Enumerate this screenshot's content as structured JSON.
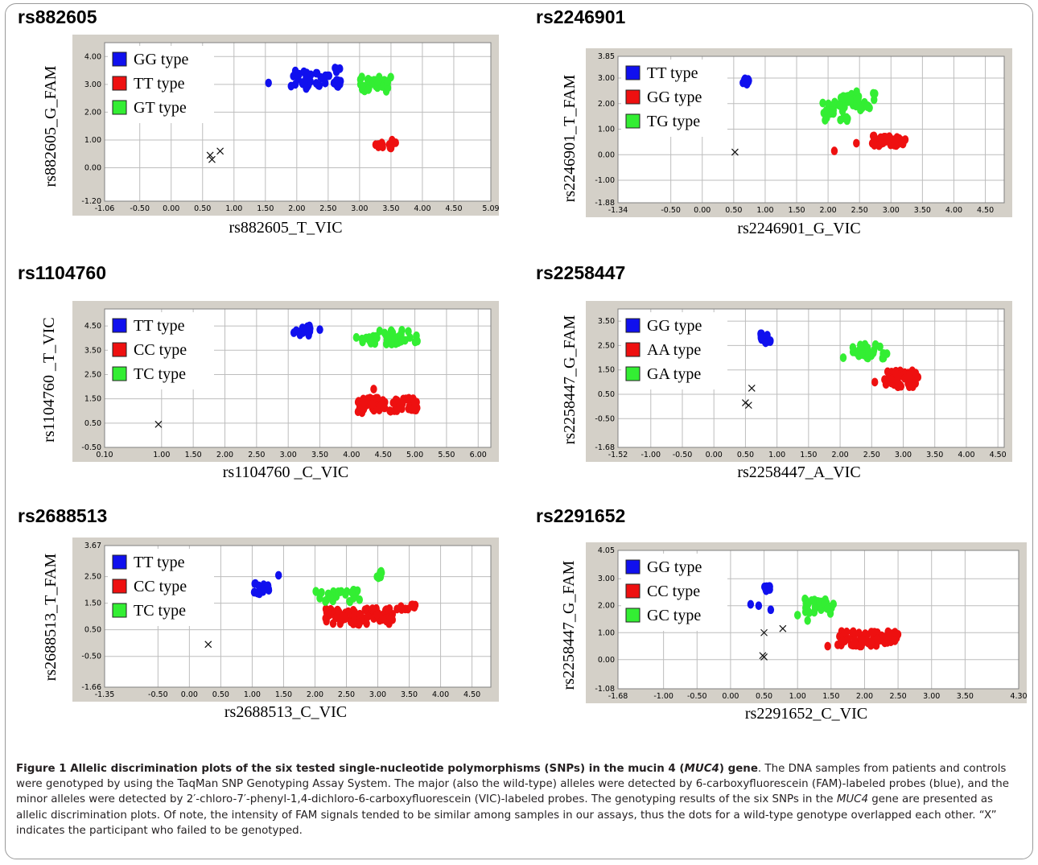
{
  "colors": {
    "blue": "#1010ee",
    "red": "#ee1010",
    "green": "#33ee33",
    "grid": "#bdbdbd",
    "panel": "#d4d0c8"
  },
  "caption": {
    "figure_label": "Figure 1",
    "title_a": "Allelic discrimination plots of the six tested single-nucleotide polymorphisms (SNPs) in the mucin 4 (",
    "title_gene": "MUC4",
    "title_b": ") gene",
    "body_a": ". The DNA samples from patients and controls were genotyped by using the TaqMan SNP Genotyping Assay System. The major (also the wild-type) alleles were detected by 6-carboxyfluorescein (FAM)-labeled probes (blue), and the minor alleles were detected by 2′-chloro-7′-phenyl-1,4-dichloro-6-carboxyfluorescein (VIC)-labeled probes. The genotyping results of the six SNPs in the ",
    "body_gene": "MUC4",
    "body_b": " gene are presented as allelic discrimination plots. Of note, the intensity of FAM signals tended to be similar among samples in our assays, thus the dots for a wild-type genotype overlapped each other. “X” indicates the participant who failed to be genotyped."
  },
  "chart_data": [
    {
      "type": "scatter",
      "title": "rs882605",
      "xlabel": "rs882605_T_VIC",
      "ylabel": "rs882605_G_FAM",
      "xlim": [
        -1.06,
        5.09
      ],
      "ylim": [
        -1.2,
        4.5
      ],
      "xticks": [
        "-1.06",
        "-0.50",
        "0.00",
        "0.50",
        "1.00",
        "1.50",
        "2.00",
        "2.50",
        "3.00",
        "3.50",
        "4.00",
        "4.50",
        "5.09"
      ],
      "yticks": [
        "-1.20",
        "0.00",
        "1.00",
        "2.00",
        "3.00",
        "4.00"
      ],
      "legend": [
        "GG type",
        "TT type",
        "GT type"
      ],
      "series": [
        {
          "name": "GG type",
          "color": "blue",
          "clusters": [
            {
              "x": [
                1.9,
                2.7
              ],
              "y": [
                2.9,
                3.6
              ],
              "n": 45
            }
          ],
          "points": [
            [
              1.55,
              3.05
            ],
            [
              2.15,
              2.85
            ]
          ]
        },
        {
          "name": "TT type",
          "color": "red",
          "clusters": [
            {
              "x": [
                3.25,
                3.6
              ],
              "y": [
                0.7,
                1.0
              ],
              "n": 14
            }
          ],
          "points": [
            [
              3.3,
              0.75
            ]
          ]
        },
        {
          "name": "GT type",
          "color": "green",
          "clusters": [
            {
              "x": [
                3.0,
                3.5
              ],
              "y": [
                2.75,
                3.3
              ],
              "n": 35
            }
          ],
          "points": []
        },
        {
          "name": "Undetermined",
          "color": "undetermined",
          "marker": "x",
          "points": [
            [
              0.65,
              0.3
            ],
            [
              0.62,
              0.45
            ],
            [
              0.78,
              0.6
            ]
          ]
        }
      ]
    },
    {
      "type": "scatter",
      "title": "rs2246901",
      "xlabel": "rs2246901_G_VIC",
      "ylabel": "rs2246901_T_FAM",
      "xlim": [
        -1.34,
        4.8
      ],
      "ylim": [
        -1.88,
        3.85
      ],
      "xticks": [
        "-1.34",
        "-0.50",
        "0.00",
        "0.50",
        "1.00",
        "1.50",
        "2.00",
        "2.50",
        "3.00",
        "3.50",
        "4.00",
        "4.50"
      ],
      "yticks": [
        "-1.88",
        "-1.00",
        "0.00",
        "1.00",
        "2.00",
        "3.00",
        "3.85"
      ],
      "legend": [
        "TT type",
        "GG type",
        "TG type"
      ],
      "series": [
        {
          "name": "TT type",
          "color": "blue",
          "clusters": [
            {
              "x": [
                0.6,
                0.75
              ],
              "y": [
                2.75,
                3.0
              ],
              "n": 10
            }
          ],
          "points": []
        },
        {
          "name": "GG type",
          "color": "red",
          "clusters": [
            {
              "x": [
                2.7,
                3.25
              ],
              "y": [
                0.35,
                0.75
              ],
              "n": 45
            }
          ],
          "points": [
            [
              2.1,
              0.15
            ],
            [
              2.45,
              0.45
            ]
          ]
        },
        {
          "name": "TG type",
          "color": "green",
          "clusters": [
            {
              "x": [
                1.9,
                2.35
              ],
              "y": [
                1.3,
                2.3
              ],
              "n": 30
            },
            {
              "x": [
                2.35,
                2.75
              ],
              "y": [
                1.7,
                2.5
              ],
              "n": 25
            }
          ],
          "points": []
        },
        {
          "name": "Undetermined",
          "color": "undetermined",
          "marker": "x",
          "points": [
            [
              0.52,
              0.1
            ]
          ]
        }
      ]
    },
    {
      "type": "scatter",
      "title": "rs1104760",
      "xlabel": "rs1104760 _C_VIC",
      "ylabel": "rs1104760 _T_VIC",
      "xlim": [
        0.1,
        6.2
      ],
      "ylim": [
        -0.5,
        5.2
      ],
      "xticks": [
        "0.10",
        "1.00",
        "1.50",
        "2.00",
        "2.50",
        "3.00",
        "3.50",
        "4.00",
        "4.50",
        "5.00",
        "5.50",
        "6.00"
      ],
      "yticks": [
        "-0.50",
        "0.50",
        "1.50",
        "2.50",
        "3.50",
        "4.50"
      ],
      "legend": [
        "TT type",
        "CC type",
        "TC type"
      ],
      "series": [
        {
          "name": "TT type",
          "color": "blue",
          "clusters": [
            {
              "x": [
                3.0,
                3.35
              ],
              "y": [
                4.1,
                4.6
              ],
              "n": 14
            }
          ],
          "points": [
            [
              3.5,
              4.35
            ]
          ]
        },
        {
          "name": "CC type",
          "color": "red",
          "clusters": [
            {
              "x": [
                4.1,
                5.05
              ],
              "y": [
                0.9,
                1.55
              ],
              "n": 75
            }
          ],
          "points": [
            [
              4.35,
              1.9
            ]
          ]
        },
        {
          "name": "TC type",
          "color": "green",
          "clusters": [
            {
              "x": [
                4.05,
                4.4
              ],
              "y": [
                3.75,
                4.1
              ],
              "n": 12
            },
            {
              "x": [
                4.4,
                5.05
              ],
              "y": [
                3.75,
                4.35
              ],
              "n": 30
            }
          ],
          "points": []
        },
        {
          "name": "Undetermined",
          "color": "undetermined",
          "marker": "x",
          "points": [
            [
              0.95,
              0.45
            ]
          ]
        }
      ]
    },
    {
      "type": "scatter",
      "title": "rs2258447",
      "xlabel": "rs2258447_A_VIC",
      "ylabel": "rs2258447_G_FAM",
      "xlim": [
        -1.52,
        4.6
      ],
      "ylim": [
        -1.68,
        4.0
      ],
      "xticks": [
        "-1.52",
        "-1.00",
        "-0.50",
        "0.00",
        "0.50",
        "1.00",
        "1.50",
        "2.00",
        "2.50",
        "3.00",
        "3.50",
        "4.00",
        "4.50"
      ],
      "yticks": [
        "-1.68",
        "-0.50",
        "0.50",
        "1.50",
        "2.50",
        "3.50"
      ],
      "legend": [
        "GG type",
        "AA type",
        "GA type"
      ],
      "series": [
        {
          "name": "GG type",
          "color": "blue",
          "clusters": [
            {
              "x": [
                0.72,
                0.9
              ],
              "y": [
                2.6,
                3.05
              ],
              "n": 16
            }
          ],
          "points": []
        },
        {
          "name": "AA type",
          "color": "red",
          "clusters": [
            {
              "x": [
                2.7,
                3.25
              ],
              "y": [
                0.8,
                1.5
              ],
              "n": 55
            }
          ],
          "points": [
            [
              2.55,
              1.0
            ]
          ]
        },
        {
          "name": "GA type",
          "color": "green",
          "clusters": [
            {
              "x": [
                2.2,
                2.75
              ],
              "y": [
                1.95,
                2.55
              ],
              "n": 32
            }
          ],
          "points": [
            [
              2.05,
              2.0
            ]
          ]
        },
        {
          "name": "Undetermined",
          "color": "undetermined",
          "marker": "x",
          "points": [
            [
              0.6,
              0.75
            ],
            [
              0.5,
              0.15
            ],
            [
              0.55,
              0.05
            ]
          ]
        }
      ]
    },
    {
      "type": "scatter",
      "title": "rs2688513",
      "xlabel": "rs2688513_C_VIC",
      "ylabel": "rs2688513_T_FAM",
      "xlim": [
        -1.35,
        4.8
      ],
      "ylim": [
        -1.66,
        3.67
      ],
      "xticks": [
        "-1.35",
        "-0.50",
        "0.00",
        "0.50",
        "1.00",
        "1.50",
        "2.00",
        "2.50",
        "3.00",
        "3.50",
        "4.00",
        "4.50"
      ],
      "yticks": [
        "-1.66",
        "-0.50",
        "0.50",
        "1.50",
        "2.50",
        "3.67"
      ],
      "legend": [
        "TT type",
        "CC type",
        "TC type"
      ],
      "series": [
        {
          "name": "TT type",
          "color": "blue",
          "clusters": [
            {
              "x": [
                1.0,
                1.3
              ],
              "y": [
                1.85,
                2.25
              ],
              "n": 16
            }
          ],
          "points": [
            [
              1.42,
              2.55
            ]
          ]
        },
        {
          "name": "CC type",
          "color": "red",
          "clusters": [
            {
              "x": [
                2.15,
                3.25
              ],
              "y": [
                0.7,
                1.3
              ],
              "n": 80
            },
            {
              "x": [
                3.3,
                3.6
              ],
              "y": [
                1.25,
                1.45
              ],
              "n": 10
            }
          ],
          "points": []
        },
        {
          "name": "TC type",
          "color": "green",
          "clusters": [
            {
              "x": [
                2.0,
                2.75
              ],
              "y": [
                1.55,
                2.0
              ],
              "n": 30
            },
            {
              "x": [
                2.95,
                3.1
              ],
              "y": [
                2.45,
                2.7
              ],
              "n": 8
            }
          ],
          "points": []
        },
        {
          "name": "Undetermined",
          "color": "undetermined",
          "marker": "x",
          "points": [
            [
              0.3,
              -0.05
            ]
          ]
        }
      ]
    },
    {
      "type": "scatter",
      "title": "rs2291652",
      "xlabel": "rs2291652_C_VIC",
      "ylabel": "rs2258447_G_FAM",
      "xlim": [
        -1.68,
        4.3
      ],
      "ylim": [
        -1.08,
        4.05
      ],
      "xticks": [
        "-1.68",
        "-1.00",
        "-0.50",
        "0.00",
        "0.50",
        "1.00",
        "1.50",
        "2.00",
        "2.50",
        "3.00",
        "3.50",
        "4.30"
      ],
      "yticks": [
        "-1.08",
        "0.00",
        "1.00",
        "2.00",
        "3.00",
        "4.05"
      ],
      "legend": [
        "GG type",
        "CC type",
        "GC type"
      ],
      "series": [
        {
          "name": "GG type",
          "color": "blue",
          "clusters": [
            {
              "x": [
                0.5,
                0.6
              ],
              "y": [
                2.45,
                2.75
              ],
              "n": 10
            }
          ],
          "points": [
            [
              0.3,
              2.05
            ],
            [
              0.42,
              2.0
            ],
            [
              0.6,
              1.85
            ]
          ]
        },
        {
          "name": "CC type",
          "color": "red",
          "clusters": [
            {
              "x": [
                1.6,
                2.5
              ],
              "y": [
                0.5,
                1.05
              ],
              "n": 70
            }
          ],
          "points": [
            [
              1.45,
              0.5
            ],
            [
              1.6,
              0.55
            ]
          ]
        },
        {
          "name": "GC type",
          "color": "green",
          "clusters": [
            {
              "x": [
                1.1,
                1.55
              ],
              "y": [
                1.7,
                2.3
              ],
              "n": 30
            }
          ],
          "points": [
            [
              1.0,
              1.65
            ],
            [
              1.15,
              1.45
            ]
          ]
        },
        {
          "name": "Undetermined",
          "color": "undetermined",
          "marker": "x",
          "points": [
            [
              0.5,
              1.0
            ],
            [
              0.78,
              1.15
            ],
            [
              0.48,
              0.15
            ],
            [
              0.5,
              0.1
            ]
          ]
        }
      ]
    }
  ]
}
